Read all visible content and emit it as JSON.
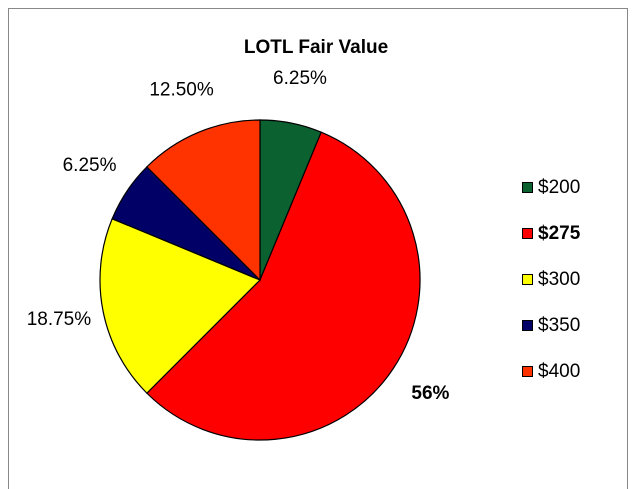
{
  "chart_data": {
    "type": "pie",
    "title": "LOTL Fair Value",
    "categories": [
      "$200",
      "$275",
      "$300",
      "$350",
      "$400"
    ],
    "values": [
      6.25,
      56.25,
      18.75,
      6.25,
      12.5
    ],
    "value_labels": [
      "6.25%",
      "56%",
      "18.75%",
      "6.25%",
      "12.50%"
    ],
    "colors": [
      "#0b6130",
      "#ff0000",
      "#ffff00",
      "#000066",
      "#ff3300"
    ],
    "bold": [
      false,
      true,
      false,
      false,
      false
    ],
    "legend": "right"
  }
}
